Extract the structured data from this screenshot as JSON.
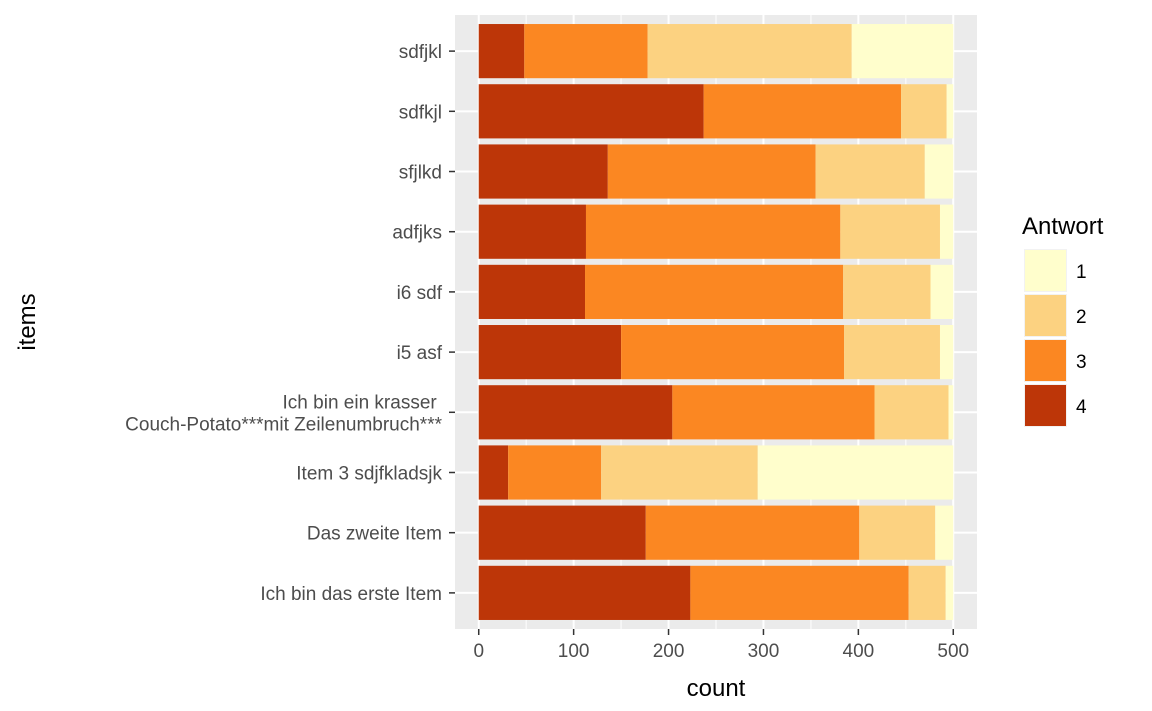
{
  "chart_data": {
    "type": "bar",
    "orientation": "horizontal",
    "stacked": true,
    "xlabel": "count",
    "ylabel": "items",
    "xlim": [
      -25,
      525
    ],
    "xticks": [
      0,
      100,
      200,
      300,
      400,
      500
    ],
    "grid": true,
    "legend_position": "right",
    "legend_title": "Antwort",
    "categories": [
      "sdfjkl",
      "sdfkjl",
      "sfjlkd",
      "adfjks",
      "i6 sdf",
      "i5 asf",
      "Ich bin ein krasser \nCouch-Potato***mit Zeilenumbruch***",
      "Item 3 sdjfkladsjk",
      "Das zweite Item",
      "Ich bin das erste Item"
    ],
    "series": [
      {
        "name": "4",
        "color": "#bd3608",
        "values": [
          48,
          237,
          136,
          113,
          112,
          150,
          204,
          31,
          176,
          223
        ]
      },
      {
        "name": "3",
        "color": "#fb8722",
        "values": [
          130,
          208,
          219,
          268,
          272,
          235,
          213,
          98,
          225,
          230
        ]
      },
      {
        "name": "2",
        "color": "#fcd281",
        "values": [
          215,
          48,
          115,
          105,
          92,
          101,
          78,
          165,
          80,
          39
        ]
      },
      {
        "name": "1",
        "color": "#fffecc",
        "values": [
          107,
          7,
          30,
          14,
          24,
          14,
          5,
          206,
          19,
          8
        ]
      }
    ],
    "legend_order": [
      "1",
      "2",
      "3",
      "4"
    ],
    "colors": {
      "panel_bg": "#ebebeb",
      "grid": "#ffffff",
      "axis_text": "#4d4d4d",
      "tick": "#333333"
    }
  }
}
